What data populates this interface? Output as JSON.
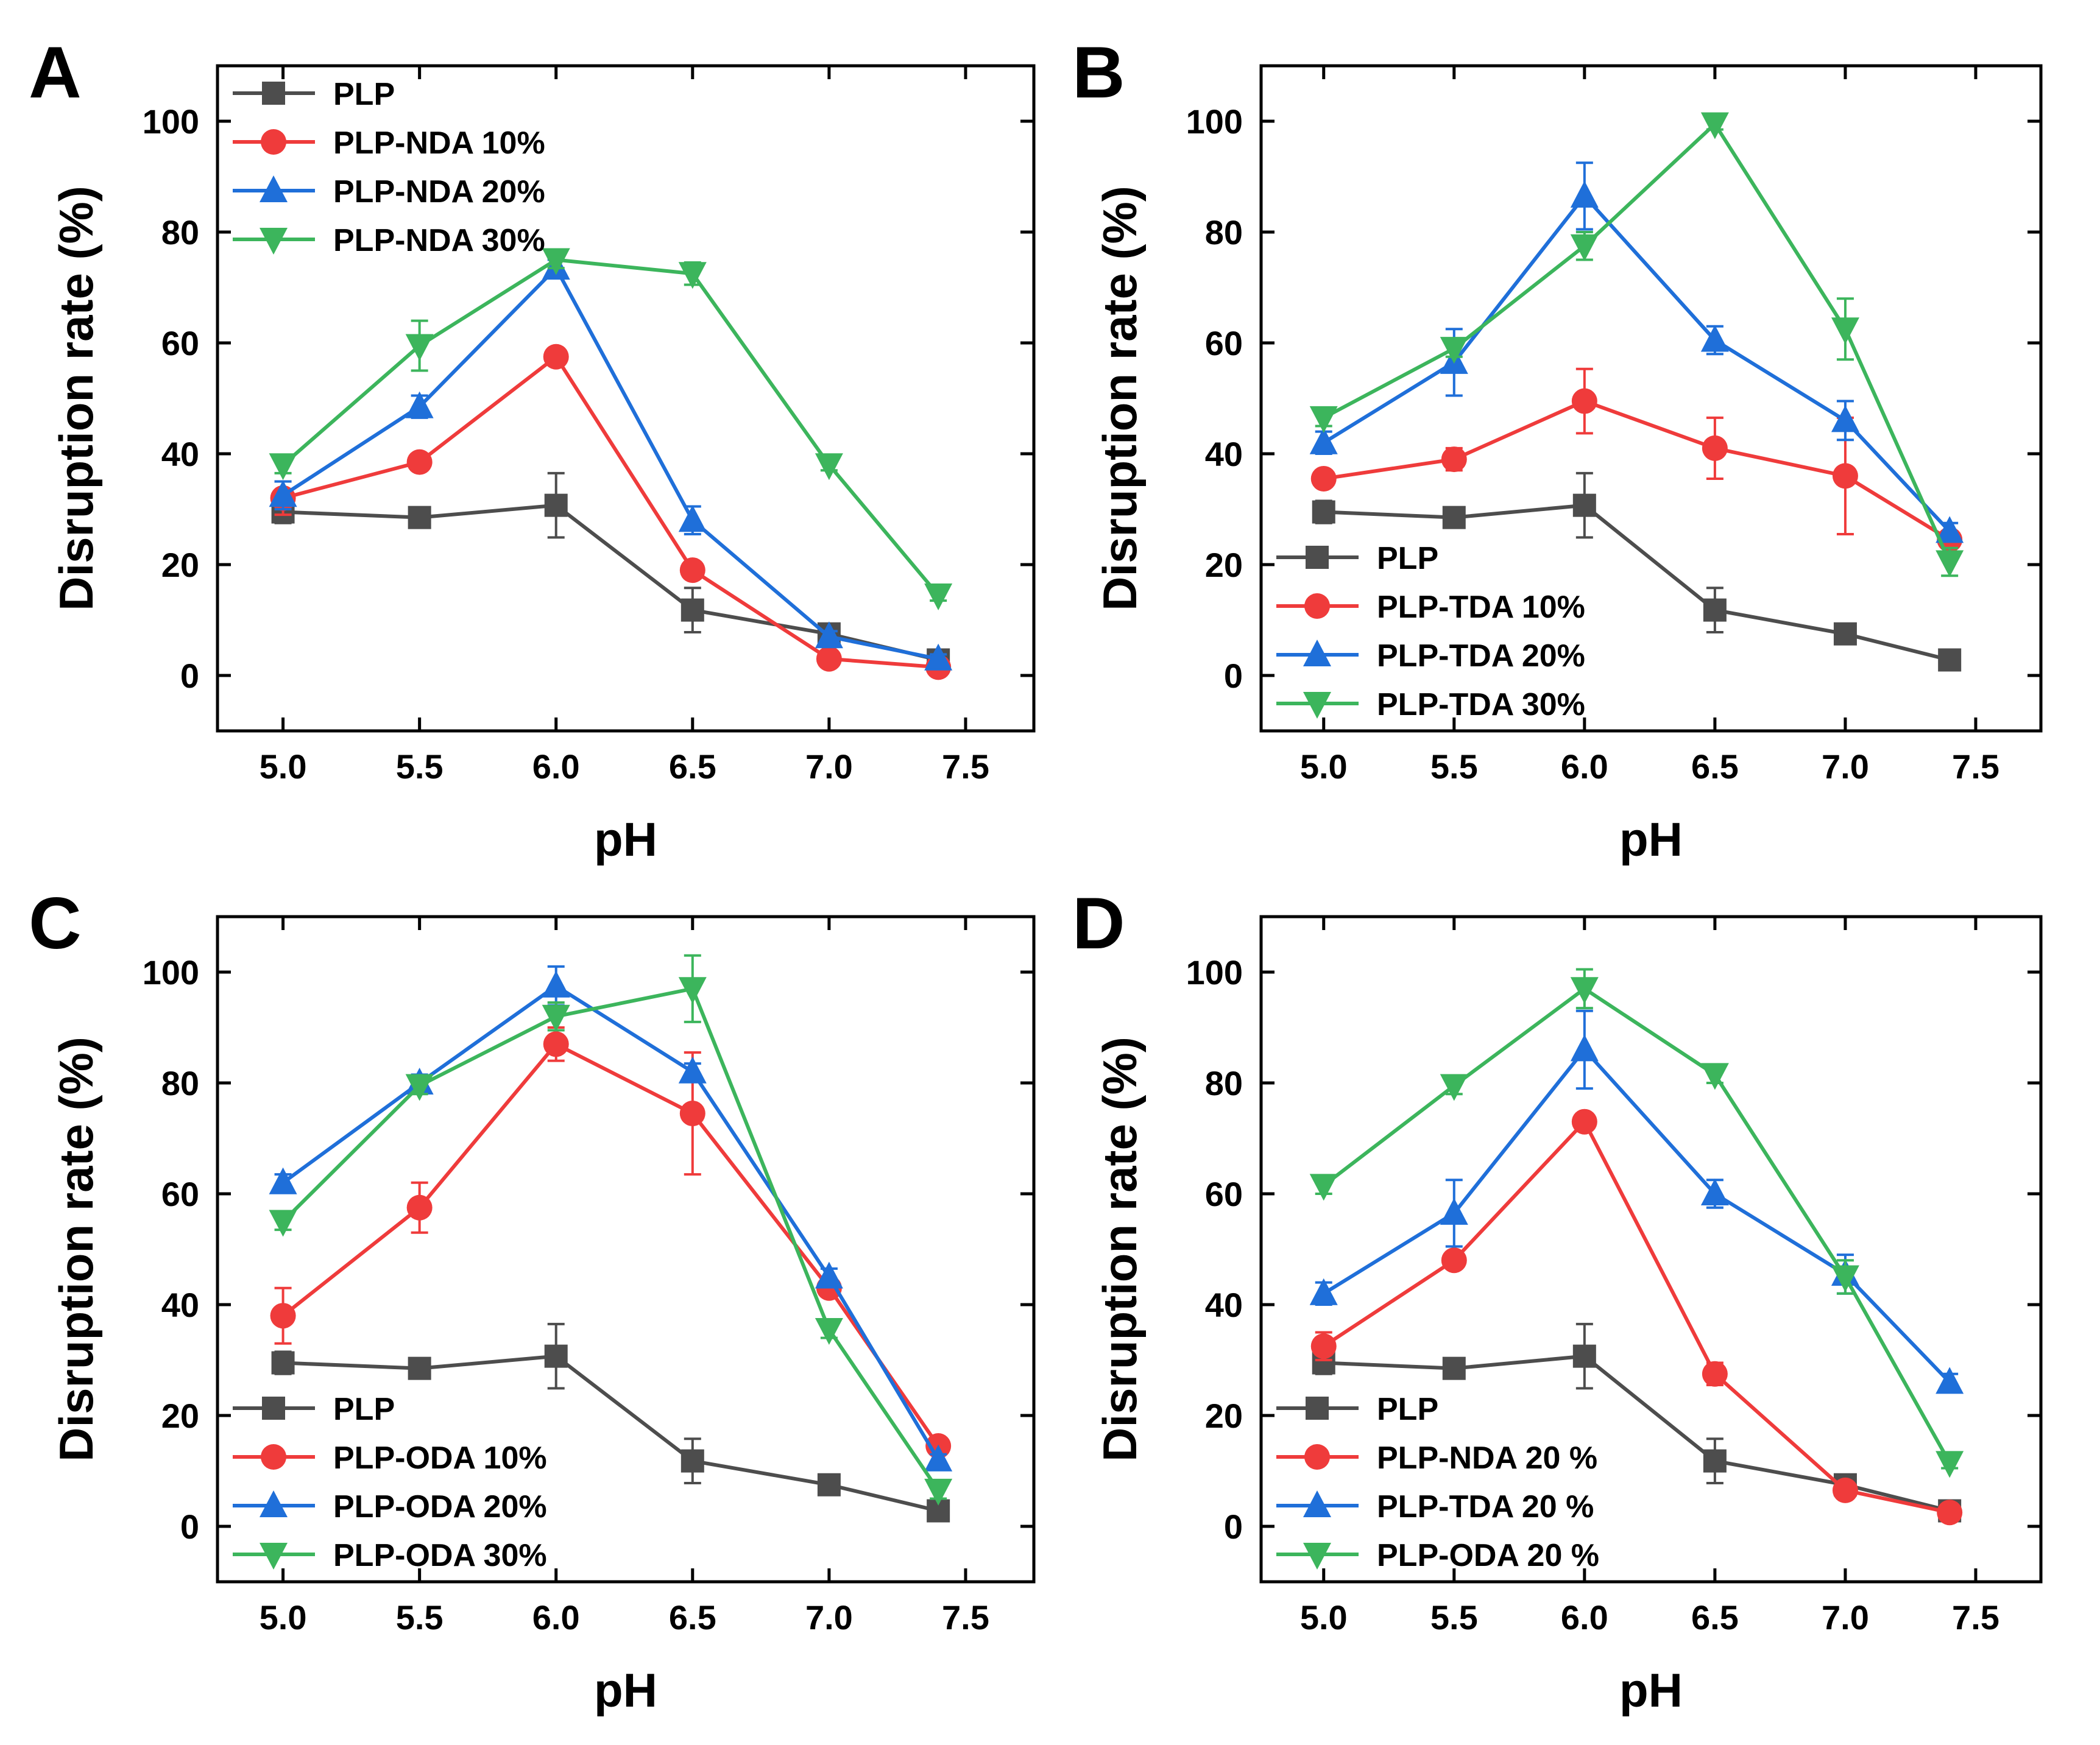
{
  "chart_data": [
    {
      "panel": "A",
      "type": "line",
      "xlabel": "pH",
      "ylabel": "Disruption rate (%)",
      "xlim": [
        4.76,
        7.75
      ],
      "ylim": [
        -10,
        110
      ],
      "xticks": [
        "5.0",
        "5.5",
        "6.0",
        "6.5",
        "7.0",
        "7.5"
      ],
      "yticks": [
        "0",
        "20",
        "40",
        "60",
        "80",
        "100"
      ],
      "legend_position": "top-left",
      "x": [
        5.0,
        5.5,
        6.0,
        6.5,
        7.0,
        7.4
      ],
      "series": [
        {
          "name": "PLP",
          "marker": "square",
          "color": "#4d4d4d",
          "values": [
            29.5,
            28.5,
            30.7,
            11.8,
            7.5,
            2.8
          ],
          "errors": [
            2,
            1.5,
            5.8,
            4,
            1.2,
            0.8
          ]
        },
        {
          "name": "PLP-NDA 10%",
          "marker": "circle",
          "color": "#ef3b3b",
          "values": [
            32,
            38.5,
            57.5,
            19,
            3,
            1.5
          ],
          "errors": [
            3,
            1.5,
            1.5,
            1.5,
            1,
            0.5
          ]
        },
        {
          "name": "PLP-NDA 20%",
          "marker": "triangle-up",
          "color": "#1f6fd9",
          "values": [
            32.5,
            48.5,
            73.5,
            28,
            7,
            3
          ],
          "errors": [
            2.5,
            2,
            1.5,
            2.5,
            1,
            0.8
          ]
        },
        {
          "name": "PLP-NDA 30%",
          "marker": "triangle-down",
          "color": "#3cb55c",
          "values": [
            38,
            59.5,
            75,
            72.5,
            38,
            14.5
          ],
          "errors": [
            1.5,
            4.5,
            1.5,
            2,
            1,
            1
          ]
        }
      ]
    },
    {
      "panel": "B",
      "type": "line",
      "xlabel": "pH",
      "ylabel": "Disruption rate (%)",
      "xlim": [
        4.76,
        7.75
      ],
      "ylim": [
        -10,
        110
      ],
      "xticks": [
        "5.0",
        "5.5",
        "6.0",
        "6.5",
        "7.0",
        "7.5"
      ],
      "yticks": [
        "0",
        "20",
        "40",
        "60",
        "80",
        "100"
      ],
      "legend_position": "bottom-left",
      "x": [
        5.0,
        5.5,
        6.0,
        6.5,
        7.0,
        7.4
      ],
      "series": [
        {
          "name": "PLP",
          "marker": "square",
          "color": "#4d4d4d",
          "values": [
            29.5,
            28.5,
            30.7,
            11.8,
            7.5,
            2.8
          ],
          "errors": [
            2,
            1.5,
            5.8,
            4,
            1.2,
            0.8
          ]
        },
        {
          "name": "PLP-TDA 10%",
          "marker": "circle",
          "color": "#ef3b3b",
          "values": [
            35.5,
            39,
            49.5,
            41,
            36,
            24.5
          ],
          "errors": [
            1.5,
            2,
            5.8,
            5.5,
            10.5,
            1.5
          ]
        },
        {
          "name": "PLP-TDA 20%",
          "marker": "triangle-up",
          "color": "#1f6fd9",
          "values": [
            42,
            56.5,
            86.5,
            60.5,
            46,
            26
          ],
          "errors": [
            2,
            6,
            6,
            2.5,
            3.5,
            1.5
          ]
        },
        {
          "name": "PLP-TDA 30%",
          "marker": "triangle-down",
          "color": "#3cb55c",
          "values": [
            46.5,
            59,
            77.5,
            99.5,
            62.5,
            20.5
          ],
          "errors": [
            1.5,
            1.5,
            2.5,
            1,
            5.5,
            2.5
          ]
        }
      ]
    },
    {
      "panel": "C",
      "type": "line",
      "xlabel": "pH",
      "ylabel": "Disruption rate (%)",
      "xlim": [
        4.76,
        7.75
      ],
      "ylim": [
        -10,
        110
      ],
      "xticks": [
        "5.0",
        "5.5",
        "6.0",
        "6.5",
        "7.0",
        "7.5"
      ],
      "yticks": [
        "0",
        "20",
        "40",
        "60",
        "80",
        "100"
      ],
      "legend_position": "bottom-left",
      "x": [
        5.0,
        5.5,
        6.0,
        6.5,
        7.0,
        7.4
      ],
      "series": [
        {
          "name": "PLP",
          "marker": "square",
          "color": "#4d4d4d",
          "values": [
            29.5,
            28.5,
            30.7,
            11.8,
            7.5,
            2.8
          ],
          "errors": [
            2,
            1.5,
            5.8,
            4,
            1.2,
            0.8
          ]
        },
        {
          "name": "PLP-ODA 10%",
          "marker": "circle",
          "color": "#ef3b3b",
          "values": [
            38,
            57.5,
            87,
            74.5,
            43,
            14.5
          ],
          "errors": [
            5,
            4.5,
            3,
            11,
            1.5,
            1
          ]
        },
        {
          "name": "PLP-ODA 20%",
          "marker": "triangle-up",
          "color": "#1f6fd9",
          "values": [
            62,
            80,
            97.5,
            82,
            45,
            12
          ],
          "errors": [
            1.5,
            1.5,
            3.5,
            1.5,
            1.5,
            1
          ]
        },
        {
          "name": "PLP-ODA 30%",
          "marker": "triangle-down",
          "color": "#3cb55c",
          "values": [
            55,
            79.5,
            92,
            97,
            35.5,
            6.5
          ],
          "errors": [
            1.5,
            1.5,
            2.5,
            6,
            1.5,
            1.5
          ]
        }
      ]
    },
    {
      "panel": "D",
      "type": "line",
      "xlabel": "pH",
      "ylabel": "Disruption rate (%)",
      "xlim": [
        4.76,
        7.75
      ],
      "ylim": [
        -10,
        110
      ],
      "xticks": [
        "5.0",
        "5.5",
        "6.0",
        "6.5",
        "7.0",
        "7.5"
      ],
      "yticks": [
        "0",
        "20",
        "40",
        "60",
        "80",
        "100"
      ],
      "legend_position": "bottom-left",
      "x": [
        5.0,
        5.5,
        6.0,
        6.5,
        7.0,
        7.4
      ],
      "series": [
        {
          "name": "PLP",
          "marker": "square",
          "color": "#4d4d4d",
          "values": [
            29.5,
            28.5,
            30.7,
            11.8,
            7.5,
            2.8
          ],
          "errors": [
            2,
            1.5,
            5.8,
            4,
            1.2,
            0.8
          ]
        },
        {
          "name": "PLP-NDA 20 %",
          "marker": "circle",
          "color": "#ef3b3b",
          "values": [
            32.5,
            48,
            73,
            27.5,
            6.5,
            2.5
          ],
          "errors": [
            2.5,
            1.5,
            1.5,
            2,
            1,
            0.5
          ]
        },
        {
          "name": "PLP-TDA 20 %",
          "marker": "triangle-up",
          "color": "#1f6fd9",
          "values": [
            42,
            56.5,
            86,
            60,
            45.5,
            26
          ],
          "errors": [
            2,
            6,
            7,
            2.5,
            3.5,
            1.5
          ]
        },
        {
          "name": "PLP-ODA 20 %",
          "marker": "triangle-down",
          "color": "#3cb55c",
          "values": [
            61.5,
            79.5,
            97,
            81.5,
            45,
            11.5
          ],
          "errors": [
            1.5,
            1.5,
            3.5,
            1.5,
            3,
            1
          ]
        }
      ]
    }
  ]
}
